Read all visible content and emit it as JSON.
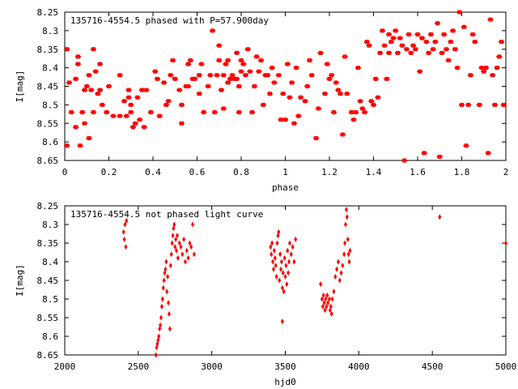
{
  "chart_data": [
    {
      "type": "scatter",
      "title": "135716-4554.5 phased with P=57.900day",
      "xlabel": "phase",
      "ylabel": "I[mag]",
      "xlim": [
        0,
        2
      ],
      "ylim": [
        8.65,
        8.25
      ],
      "y_inverted": true,
      "grid": false,
      "marker_color": "#ff0000",
      "x_ticks": [
        "0",
        "0.2",
        "0.4",
        "0.6",
        "0.8",
        "1",
        "1.2",
        "1.4",
        "1.6",
        "1.8",
        "2"
      ],
      "y_ticks": [
        "8.25",
        "8.3",
        "8.35",
        "8.4",
        "8.45",
        "8.5",
        "8.55",
        "8.6",
        "8.65"
      ],
      "points": [
        [
          0.01,
          8.61
        ],
        [
          0.01,
          8.35
        ],
        [
          0.02,
          8.44
        ],
        [
          0.03,
          8.52
        ],
        [
          0.05,
          8.56
        ],
        [
          0.05,
          8.43
        ],
        [
          0.06,
          8.39
        ],
        [
          0.06,
          8.37
        ],
        [
          0.07,
          8.61
        ],
        [
          0.08,
          8.52
        ],
        [
          0.09,
          8.55
        ],
        [
          0.09,
          8.46
        ],
        [
          0.1,
          8.45
        ],
        [
          0.11,
          8.59
        ],
        [
          0.11,
          8.42
        ],
        [
          0.12,
          8.46
        ],
        [
          0.13,
          8.35
        ],
        [
          0.13,
          8.52
        ],
        [
          0.14,
          8.41
        ],
        [
          0.15,
          8.47
        ],
        [
          0.16,
          8.46
        ],
        [
          0.16,
          8.39
        ],
        [
          0.17,
          8.5
        ],
        [
          0.19,
          8.52
        ],
        [
          0.2,
          8.45
        ],
        [
          0.22,
          8.53
        ],
        [
          0.25,
          8.42
        ],
        [
          0.25,
          8.53
        ],
        [
          0.27,
          8.49
        ],
        [
          0.28,
          8.53
        ],
        [
          0.29,
          8.46
        ],
        [
          0.29,
          8.48
        ],
        [
          0.3,
          8.5
        ],
        [
          0.3,
          8.52
        ],
        [
          0.31,
          8.56
        ],
        [
          0.32,
          8.55
        ],
        [
          0.33,
          8.48
        ],
        [
          0.34,
          8.54
        ],
        [
          0.35,
          8.46
        ],
        [
          0.36,
          8.56
        ],
        [
          0.37,
          8.46
        ],
        [
          0.39,
          8.52
        ],
        [
          0.41,
          8.41
        ],
        [
          0.42,
          8.43
        ],
        [
          0.43,
          8.53
        ],
        [
          0.45,
          8.44
        ],
        [
          0.46,
          8.5
        ],
        [
          0.47,
          8.49
        ],
        [
          0.48,
          8.42
        ],
        [
          0.49,
          8.38
        ],
        [
          0.5,
          8.43
        ],
        [
          0.52,
          8.46
        ],
        [
          0.53,
          8.5
        ],
        [
          0.53,
          8.55
        ],
        [
          0.55,
          8.45
        ],
        [
          0.56,
          8.39
        ],
        [
          0.56,
          8.45
        ],
        [
          0.57,
          8.38
        ],
        [
          0.58,
          8.43
        ],
        [
          0.59,
          8.43
        ],
        [
          0.61,
          8.42
        ],
        [
          0.61,
          8.47
        ],
        [
          0.62,
          8.39
        ],
        [
          0.63,
          8.52
        ],
        [
          0.65,
          8.45
        ],
        [
          0.66,
          8.42
        ],
        [
          0.67,
          8.3
        ],
        [
          0.68,
          8.52
        ],
        [
          0.69,
          8.42
        ],
        [
          0.7,
          8.38
        ],
        [
          0.7,
          8.34
        ],
        [
          0.71,
          8.46
        ],
        [
          0.72,
          8.51
        ],
        [
          0.72,
          8.42
        ],
        [
          0.73,
          8.39
        ],
        [
          0.74,
          8.44
        ],
        [
          0.74,
          8.38
        ],
        [
          0.75,
          8.43
        ],
        [
          0.76,
          8.42
        ],
        [
          0.77,
          8.43
        ],
        [
          0.78,
          8.36
        ],
        [
          0.78,
          8.43
        ],
        [
          0.79,
          8.52
        ],
        [
          0.79,
          8.45
        ],
        [
          0.8,
          8.41
        ],
        [
          0.8,
          8.38
        ],
        [
          0.81,
          8.39
        ],
        [
          0.82,
          8.42
        ],
        [
          0.83,
          8.35
        ],
        [
          0.84,
          8.41
        ],
        [
          0.85,
          8.52
        ],
        [
          0.86,
          8.45
        ],
        [
          0.87,
          8.37
        ],
        [
          0.88,
          8.41
        ],
        [
          0.89,
          8.38
        ],
        [
          0.9,
          8.5
        ],
        [
          0.91,
          8.42
        ],
        [
          0.92,
          8.42
        ],
        [
          0.93,
          8.47
        ],
        [
          0.94,
          8.4
        ],
        [
          0.95,
          8.44
        ],
        [
          0.97,
          8.42
        ],
        [
          0.98,
          8.54
        ],
        [
          0.99,
          8.47
        ],
        [
          1.0,
          8.54
        ],
        [
          1.01,
          8.39
        ],
        [
          1.02,
          8.48
        ],
        [
          1.03,
          8.44
        ],
        [
          1.04,
          8.55
        ],
        [
          1.05,
          8.4
        ],
        [
          1.06,
          8.53
        ],
        [
          1.07,
          8.48
        ],
        [
          1.09,
          8.49
        ],
        [
          1.1,
          8.45
        ],
        [
          1.11,
          8.38
        ],
        [
          1.12,
          8.42
        ],
        [
          1.14,
          8.59
        ],
        [
          1.15,
          8.51
        ],
        [
          1.16,
          8.36
        ],
        [
          1.18,
          8.47
        ],
        [
          1.19,
          8.39
        ],
        [
          1.2,
          8.43
        ],
        [
          1.21,
          8.42
        ],
        [
          1.22,
          8.52
        ],
        [
          1.23,
          8.44
        ],
        [
          1.24,
          8.46
        ],
        [
          1.25,
          8.47
        ],
        [
          1.26,
          8.58
        ],
        [
          1.27,
          8.37
        ],
        [
          1.28,
          8.47
        ],
        [
          1.3,
          8.52
        ],
        [
          1.31,
          8.54
        ],
        [
          1.32,
          8.52
        ],
        [
          1.33,
          8.4
        ],
        [
          1.34,
          8.49
        ],
        [
          1.35,
          8.51
        ],
        [
          1.36,
          8.52
        ],
        [
          1.37,
          8.33
        ],
        [
          1.38,
          8.34
        ],
        [
          1.39,
          8.49
        ],
        [
          1.4,
          8.5
        ],
        [
          1.41,
          8.43
        ],
        [
          1.42,
          8.48
        ],
        [
          1.43,
          8.36
        ],
        [
          1.44,
          8.3
        ],
        [
          1.45,
          8.34
        ],
        [
          1.46,
          8.43
        ],
        [
          1.47,
          8.31
        ],
        [
          1.47,
          8.36
        ],
        [
          1.48,
          8.33
        ],
        [
          1.49,
          8.32
        ],
        [
          1.5,
          8.3
        ],
        [
          1.51,
          8.36
        ],
        [
          1.52,
          8.32
        ],
        [
          1.53,
          8.34
        ],
        [
          1.54,
          8.65
        ],
        [
          1.55,
          8.35
        ],
        [
          1.56,
          8.31
        ],
        [
          1.57,
          8.36
        ],
        [
          1.58,
          8.34
        ],
        [
          1.59,
          8.35
        ],
        [
          1.6,
          8.31
        ],
        [
          1.61,
          8.41
        ],
        [
          1.62,
          8.32
        ],
        [
          1.63,
          8.63
        ],
        [
          1.64,
          8.33
        ],
        [
          1.65,
          8.36
        ],
        [
          1.66,
          8.31
        ],
        [
          1.67,
          8.35
        ],
        [
          1.68,
          8.33
        ],
        [
          1.69,
          8.28
        ],
        [
          1.7,
          8.64
        ],
        [
          1.71,
          8.36
        ],
        [
          1.72,
          8.31
        ],
        [
          1.73,
          8.35
        ],
        [
          1.74,
          8.38
        ],
        [
          1.75,
          8.33
        ],
        [
          1.76,
          8.3
        ],
        [
          1.77,
          8.35
        ],
        [
          1.78,
          8.4
        ],
        [
          1.79,
          8.25
        ],
        [
          1.8,
          8.5
        ],
        [
          1.81,
          8.29
        ],
        [
          1.82,
          8.61
        ],
        [
          1.83,
          8.5
        ],
        [
          1.84,
          8.42
        ],
        [
          1.85,
          8.31
        ],
        [
          1.86,
          8.33
        ],
        [
          1.88,
          8.5
        ],
        [
          1.89,
          8.4
        ],
        [
          1.9,
          8.41
        ],
        [
          1.91,
          8.4
        ],
        [
          1.92,
          8.63
        ],
        [
          1.93,
          8.27
        ],
        [
          1.94,
          8.42
        ],
        [
          1.95,
          8.5
        ],
        [
          1.96,
          8.4
        ],
        [
          1.97,
          8.37
        ],
        [
          1.98,
          8.33
        ],
        [
          1.99,
          8.5
        ]
      ]
    },
    {
      "type": "scatter",
      "title": "135716-4554.5 not phased light curve",
      "xlabel": "hjd0",
      "ylabel": "I[mag]",
      "xlim": [
        2000,
        5000
      ],
      "ylim": [
        8.65,
        8.25
      ],
      "y_inverted": true,
      "grid": false,
      "marker_color": "#ff0000",
      "x_ticks": [
        "2000",
        "2500",
        "3000",
        "3500",
        "4000",
        "4500",
        "5000"
      ],
      "y_ticks": [
        "8.25",
        "8.3",
        "8.35",
        "8.4",
        "8.45",
        "8.5",
        "8.55",
        "8.6",
        "8.65"
      ],
      "points": [
        [
          2400,
          8.32
        ],
        [
          2405,
          8.34
        ],
        [
          2410,
          8.3
        ],
        [
          2415,
          8.36
        ],
        [
          2420,
          8.29
        ],
        [
          2620,
          8.65
        ],
        [
          2625,
          8.63
        ],
        [
          2630,
          8.62
        ],
        [
          2635,
          8.61
        ],
        [
          2640,
          8.6
        ],
        [
          2645,
          8.58
        ],
        [
          2650,
          8.57
        ],
        [
          2655,
          8.55
        ],
        [
          2660,
          8.52
        ],
        [
          2665,
          8.5
        ],
        [
          2670,
          8.47
        ],
        [
          2675,
          8.45
        ],
        [
          2680,
          8.43
        ],
        [
          2685,
          8.42
        ],
        [
          2690,
          8.4
        ],
        [
          2695,
          8.48
        ],
        [
          2700,
          8.44
        ],
        [
          2705,
          8.51
        ],
        [
          2710,
          8.54
        ],
        [
          2715,
          8.58
        ],
        [
          2720,
          8.41
        ],
        [
          2725,
          8.38
        ],
        [
          2730,
          8.35
        ],
        [
          2735,
          8.33
        ],
        [
          2740,
          8.31
        ],
        [
          2745,
          8.3
        ],
        [
          2750,
          8.36
        ],
        [
          2755,
          8.34
        ],
        [
          2760,
          8.37
        ],
        [
          2765,
          8.33
        ],
        [
          2770,
          8.39
        ],
        [
          2780,
          8.35
        ],
        [
          2790,
          8.36
        ],
        [
          2800,
          8.38
        ],
        [
          2810,
          8.34
        ],
        [
          2820,
          8.4
        ],
        [
          2830,
          8.37
        ],
        [
          2840,
          8.39
        ],
        [
          2850,
          8.35
        ],
        [
          2860,
          8.36
        ],
        [
          2870,
          8.3
        ],
        [
          2880,
          8.38
        ],
        [
          3400,
          8.36
        ],
        [
          3405,
          8.38
        ],
        [
          3410,
          8.35
        ],
        [
          3415,
          8.4
        ],
        [
          3420,
          8.42
        ],
        [
          3425,
          8.37
        ],
        [
          3430,
          8.39
        ],
        [
          3435,
          8.41
        ],
        [
          3440,
          8.44
        ],
        [
          3445,
          8.35
        ],
        [
          3450,
          8.33
        ],
        [
          3455,
          8.32
        ],
        [
          3460,
          8.45
        ],
        [
          3465,
          8.38
        ],
        [
          3470,
          8.42
        ],
        [
          3475,
          8.4
        ],
        [
          3480,
          8.47
        ],
        [
          3485,
          8.43
        ],
        [
          3490,
          8.48
        ],
        [
          3495,
          8.39
        ],
        [
          3500,
          8.44
        ],
        [
          3505,
          8.41
        ],
        [
          3510,
          8.46
        ],
        [
          3515,
          8.37
        ],
        [
          3520,
          8.43
        ],
        [
          3525,
          8.4
        ],
        [
          3530,
          8.35
        ],
        [
          3540,
          8.38
        ],
        [
          3550,
          8.36
        ],
        [
          3560,
          8.4
        ],
        [
          3570,
          8.34
        ],
        [
          3480,
          8.56
        ],
        [
          3740,
          8.46
        ],
        [
          3750,
          8.5
        ],
        [
          3755,
          8.52
        ],
        [
          3760,
          8.49
        ],
        [
          3765,
          8.51
        ],
        [
          3770,
          8.53
        ],
        [
          3775,
          8.5
        ],
        [
          3780,
          8.52
        ],
        [
          3785,
          8.49
        ],
        [
          3790,
          8.51
        ],
        [
          3800,
          8.5
        ],
        [
          3805,
          8.53
        ],
        [
          3810,
          8.52
        ],
        [
          3815,
          8.54
        ],
        [
          3820,
          8.5
        ],
        [
          3830,
          8.48
        ],
        [
          3840,
          8.44
        ],
        [
          3850,
          8.42
        ],
        [
          3860,
          8.4
        ],
        [
          3870,
          8.45
        ],
        [
          3880,
          8.43
        ],
        [
          3890,
          8.41
        ],
        [
          3900,
          8.38
        ],
        [
          3905,
          8.35
        ],
        [
          3910,
          8.3
        ],
        [
          3915,
          8.26
        ],
        [
          3920,
          8.28
        ],
        [
          3925,
          8.34
        ],
        [
          3930,
          8.38
        ],
        [
          3935,
          8.4
        ],
        [
          3940,
          8.37
        ],
        [
          4550,
          8.28
        ],
        [
          5000,
          8.35
        ]
      ]
    }
  ]
}
